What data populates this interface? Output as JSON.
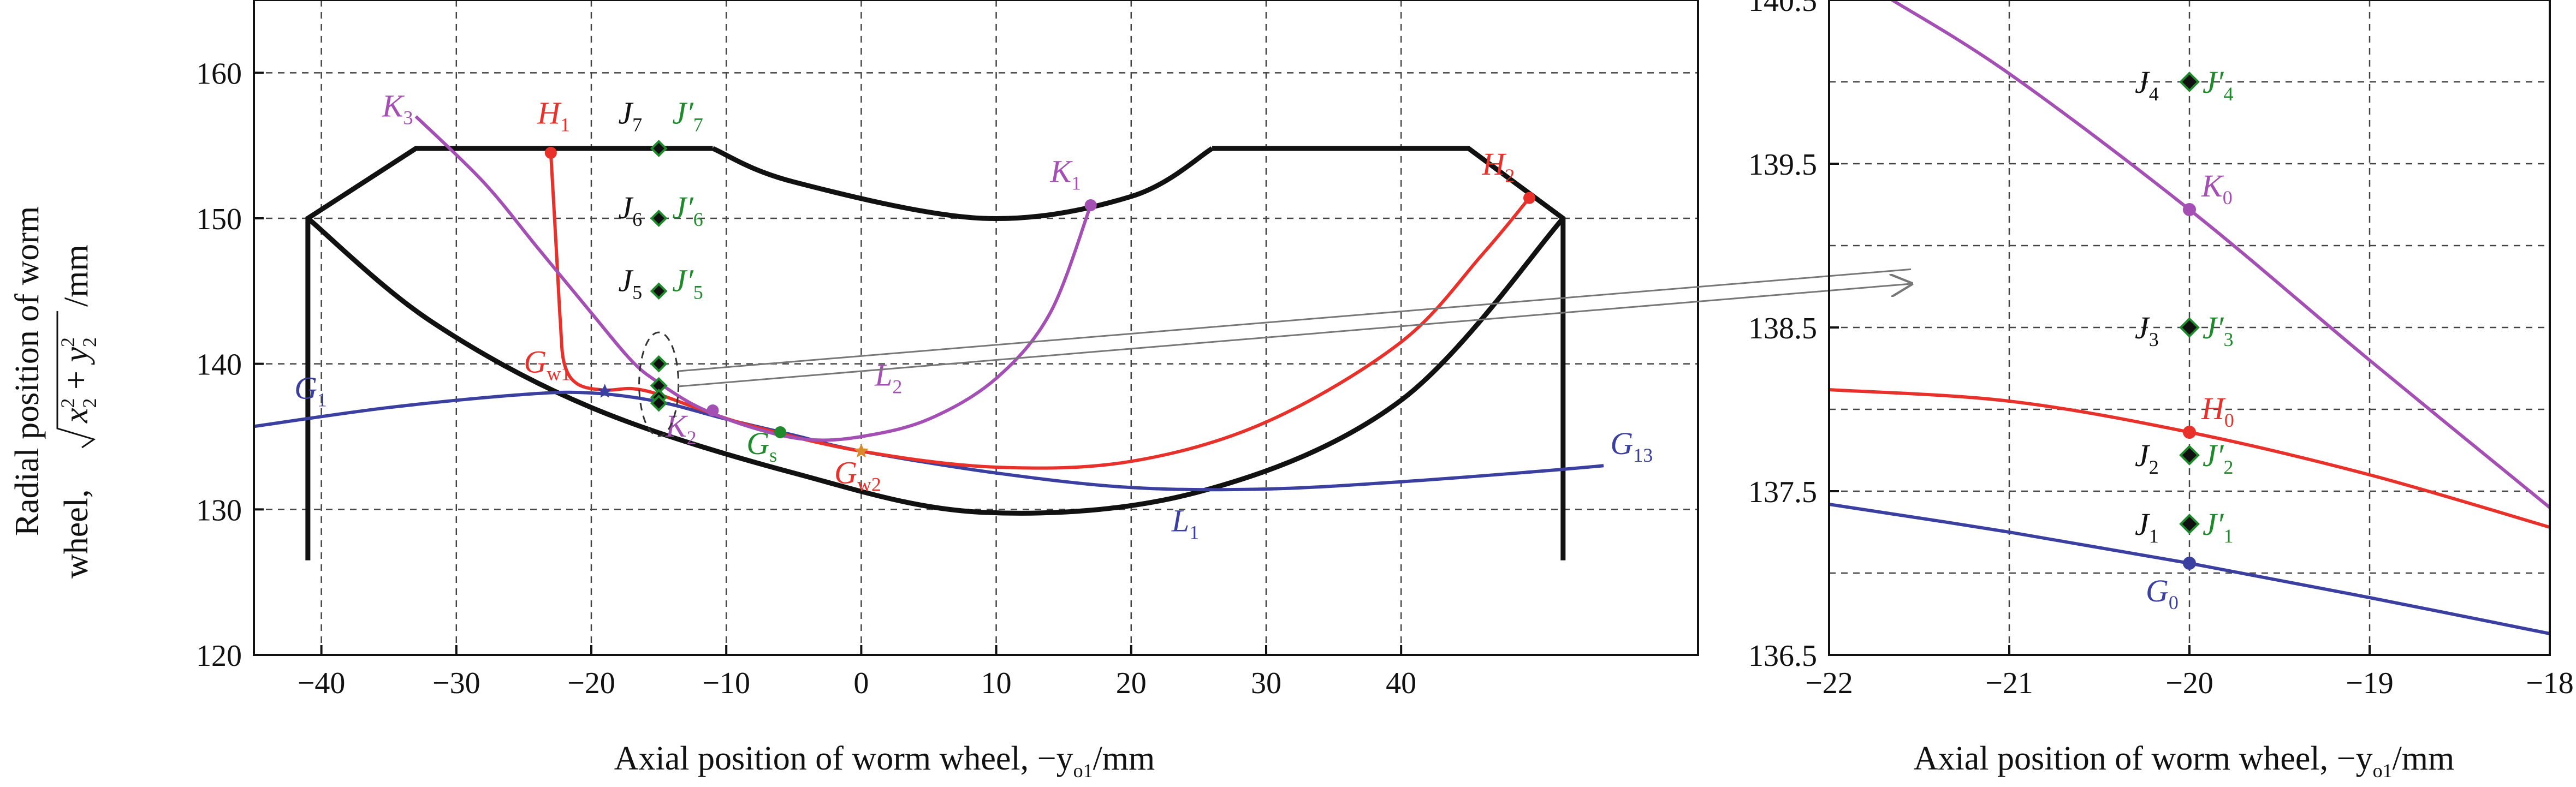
{
  "chart_data": [
    {
      "type": "line",
      "title": "",
      "xlabel": "Axial position of worm wheel, −y",
      "xlabel_sub": "o1",
      "xlabel_unit": "/mm",
      "ylabel_line1": "Radial position of worm",
      "ylabel_line2_prefix": "wheel, ",
      "ylabel_sqrt_x": "x",
      "ylabel_sqrt_y": "y",
      "ylabel_sq": "2",
      "ylabel_plus": " + ",
      "ylabel_unit": "/mm",
      "xlim": [
        -45,
        62
      ],
      "ylim": [
        120,
        165
      ],
      "xticks": [
        -40,
        -30,
        -20,
        -10,
        0,
        10,
        20,
        30,
        40
      ],
      "yticks": [
        120,
        130,
        140,
        150,
        160
      ],
      "grid": true,
      "colors": {
        "black": "#111111",
        "blue": "#3b3fa0",
        "red": "#e8312a",
        "purple": "#a34fb3",
        "green": "#1f8a2c",
        "orange": "#d98a2a"
      },
      "outline": [
        {
          "points": [
            [
              -41,
              126.5
            ],
            [
              -41,
              150
            ],
            [
              -33,
              154.8
            ],
            [
              -11,
              154.8
            ]
          ]
        },
        {
          "points": [
            [
              -11,
              154.8
            ],
            [
              -5,
              152.5
            ],
            [
              9,
              150
            ],
            [
              20,
              151.5
            ],
            [
              26,
              154.8
            ]
          ]
        },
        {
          "points": [
            [
              26,
              154.8
            ],
            [
              45,
              154.8
            ],
            [
              52,
              150
            ],
            [
              52,
              126.5
            ]
          ]
        },
        {
          "points": [
            [
              -41,
              150
            ],
            [
              -32,
              143
            ],
            [
              -20,
              137
            ],
            [
              -5,
              132.5
            ],
            [
              9,
              129.8
            ],
            [
              25,
              131.2
            ],
            [
              40,
              137.5
            ],
            [
              52,
              150
            ]
          ]
        }
      ],
      "series": [
        {
          "name": "",
          "color": "blue",
          "points": [
            [
              -45,
              135.7
            ],
            [
              -35,
              137.0
            ],
            [
              -25,
              137.9
            ],
            [
              -20,
              138.0
            ],
            [
              -15,
              137.4
            ],
            [
              -10,
              136.2
            ],
            [
              -5,
              135.1
            ],
            [
              0,
              134.0
            ],
            [
              10,
              132.5
            ],
            [
              20,
              131.5
            ],
            [
              30,
              131.4
            ],
            [
              40,
              131.9
            ],
            [
              50,
              132.6
            ],
            [
              55,
              133.0
            ]
          ]
        },
        {
          "name": "",
          "color": "red",
          "points": [
            [
              -23,
              154.5
            ],
            [
              -22.6,
              148
            ],
            [
              -22.3,
              143
            ],
            [
              -22,
              140
            ],
            [
              -21,
              138.6
            ],
            [
              -19,
              138.2
            ],
            [
              -17,
              138.3
            ],
            [
              -15,
              137.9
            ],
            [
              -12,
              136.9
            ],
            [
              -8,
              135.7
            ],
            [
              0,
              134.0
            ],
            [
              10,
              132.9
            ],
            [
              20,
              133.3
            ],
            [
              30,
              136.0
            ],
            [
              40,
              141.5
            ],
            [
              46,
              147.5
            ],
            [
              49.5,
              151.4
            ]
          ]
        },
        {
          "name": "",
          "color": "purple",
          "points": [
            [
              -33,
              157.0
            ],
            [
              -28,
              152.5
            ],
            [
              -24,
              148.0
            ],
            [
              -20,
              143.5
            ],
            [
              -17,
              140.2
            ],
            [
              -15,
              138.7
            ],
            [
              -12,
              137.0
            ],
            [
              -8,
              135.6
            ],
            [
              -4,
              134.8
            ],
            [
              0,
              135.0
            ],
            [
              5,
              136.2
            ],
            [
              10,
              139.0
            ],
            [
              14,
              143.5
            ],
            [
              17,
              150.9
            ]
          ]
        }
      ],
      "points": [
        {
          "label": "H",
          "sub": "1",
          "x": -23,
          "y": 154.5,
          "color": "red"
        },
        {
          "label": "H",
          "sub": "2",
          "x": 49.5,
          "y": 151.4,
          "color": "red"
        },
        {
          "label": "K",
          "sub": "1",
          "x": 17,
          "y": 150.9,
          "color": "purple"
        },
        {
          "label": "K",
          "sub": "2",
          "x": -11,
          "y": 136.8,
          "color": "purple"
        },
        {
          "label": "G",
          "sub": "s",
          "x": -6,
          "y": 135.3,
          "color": "green"
        },
        {
          "label": "G",
          "sub": "w1",
          "x": -19,
          "y": 138.1,
          "color": "blue"
        },
        {
          "label": "G",
          "sub": "w2",
          "x": 0,
          "y": 134.0,
          "color": "orange"
        }
      ],
      "column_points": [
        {
          "x": -15,
          "y": 154.8
        },
        {
          "x": -15,
          "y": 150.0
        },
        {
          "x": -15,
          "y": 145.0
        },
        {
          "x": -15,
          "y": 140.0
        },
        {
          "x": -15,
          "y": 138.5
        },
        {
          "x": -15,
          "y": 137.7
        },
        {
          "x": -15,
          "y": 137.3
        }
      ],
      "annotations": [
        {
          "text": "K",
          "sub": "3",
          "x": -35.5,
          "y": 157,
          "color": "purple"
        },
        {
          "text": "H",
          "sub": "1",
          "x": -24,
          "y": 156.5,
          "color": "red"
        },
        {
          "text": "J",
          "sub": "7",
          "x": -18,
          "y": 156.5,
          "color": "black"
        },
        {
          "text": "J′",
          "sub": "7",
          "x": -14,
          "y": 156.5,
          "color": "green"
        },
        {
          "text": "J",
          "sub": "6",
          "x": -18,
          "y": 150.0,
          "color": "black"
        },
        {
          "text": "J′",
          "sub": "6",
          "x": -14,
          "y": 150.0,
          "color": "green"
        },
        {
          "text": "J",
          "sub": "5",
          "x": -18,
          "y": 145.0,
          "color": "black"
        },
        {
          "text": "J′",
          "sub": "5",
          "x": -14,
          "y": 145.0,
          "color": "green"
        },
        {
          "text": "K",
          "sub": "1",
          "x": 14,
          "y": 152.5,
          "color": "purple"
        },
        {
          "text": "H",
          "sub": "2",
          "x": 46,
          "y": 153.0,
          "color": "red"
        },
        {
          "text": "G",
          "sub": "1",
          "x": -42,
          "y": 137.6,
          "color": "blue"
        },
        {
          "text": "G",
          "sub": "w1",
          "x": -25,
          "y": 139.4,
          "color": "red"
        },
        {
          "text": "K",
          "sub": "2",
          "x": -14.5,
          "y": 135.0,
          "color": "purple"
        },
        {
          "text": "G",
          "sub": "s",
          "x": -8.5,
          "y": 133.8,
          "color": "green"
        },
        {
          "text": "G",
          "sub": "w2",
          "x": -2,
          "y": 131.8,
          "color": "red"
        },
        {
          "text": "L",
          "sub": "2",
          "x": 1,
          "y": 138.5,
          "color": "purple"
        },
        {
          "text": "L",
          "sub": "1",
          "x": 23,
          "y": 128.5,
          "color": "blue"
        },
        {
          "text": "G",
          "sub": "13",
          "x": 55.5,
          "y": 133.8,
          "color": "blue"
        }
      ]
    },
    {
      "type": "line",
      "title": "",
      "xlabel": "Axial position of worm wheel, −y",
      "xlabel_sub": "o1",
      "xlabel_unit": "/mm",
      "xlim": [
        -22,
        -18
      ],
      "ylim": [
        136.5,
        140.5
      ],
      "xticks": [
        -22,
        -21,
        -20,
        -19,
        -18
      ],
      "yticks": [
        136.5,
        137.5,
        138.5,
        139.5,
        140.5
      ],
      "grid": true,
      "series": [
        {
          "name": "",
          "color": "purple",
          "points": [
            [
              -21.65,
              140.5
            ],
            [
              -21,
              140.05
            ],
            [
              -20,
              139.22
            ],
            [
              -19,
              138.3
            ],
            [
              -18,
              137.4
            ]
          ]
        },
        {
          "name": "",
          "color": "red",
          "points": [
            [
              -22,
              138.12
            ],
            [
              -21,
              138.05
            ],
            [
              -20,
              137.86
            ],
            [
              -19,
              137.6
            ],
            [
              -18,
              137.28
            ]
          ]
        },
        {
          "name": "",
          "color": "blue",
          "points": [
            [
              -22,
              137.42
            ],
            [
              -21,
              137.25
            ],
            [
              -20,
              137.06
            ],
            [
              -19,
              136.85
            ],
            [
              -18,
              136.63
            ]
          ]
        }
      ],
      "points": [
        {
          "label": "K",
          "sub": "0",
          "x": -20,
          "y": 139.22,
          "color": "purple"
        },
        {
          "label": "H",
          "sub": "0",
          "x": -20,
          "y": 137.86,
          "color": "red"
        },
        {
          "label": "G",
          "sub": "0",
          "x": -20,
          "y": 137.06,
          "color": "blue"
        }
      ],
      "j_points": [
        {
          "label": "J",
          "sub": "4",
          "y": 140.0
        },
        {
          "label": "J",
          "sub": "3",
          "y": 138.5
        },
        {
          "label": "J",
          "sub": "2",
          "y": 137.72
        },
        {
          "label": "J",
          "sub": "1",
          "y": 137.3
        }
      ]
    }
  ]
}
